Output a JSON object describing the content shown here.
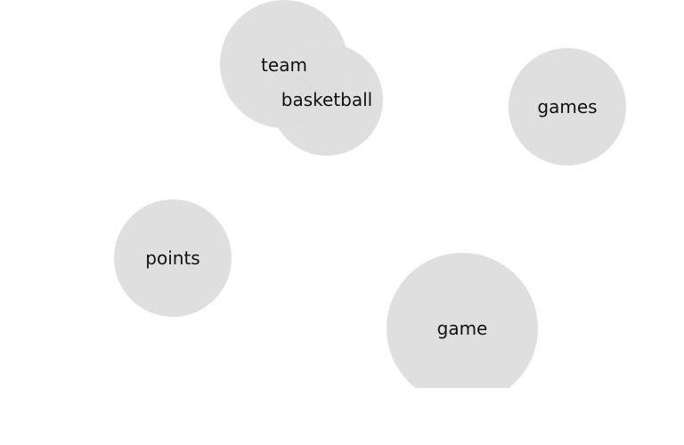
{
  "diagram": {
    "nodes": [
      {
        "id": "team",
        "label": "team"
      },
      {
        "id": "basketball",
        "label": "basketball"
      },
      {
        "id": "games",
        "label": "games"
      },
      {
        "id": "points",
        "label": "points"
      },
      {
        "id": "game",
        "label": "game"
      }
    ],
    "edges": [
      {
        "from": "team",
        "to": "basketball"
      }
    ],
    "colors": {
      "bubble_fill": "#dddddd",
      "edge": "#9a9a9a",
      "label": "#111111"
    }
  }
}
